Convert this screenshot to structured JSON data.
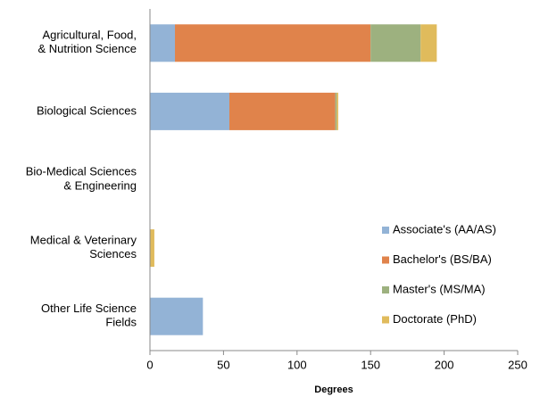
{
  "chart_data": {
    "type": "stacked-barh",
    "xlabel": "Degrees",
    "categories": [
      "Agricultural, Food,\n& Nutrition Science",
      "Biological Sciences",
      "Bio-Medical Sciences\n& Engineering",
      "Medical & Veterinary\nSciences",
      "Other Life Science\nFields"
    ],
    "series": [
      {
        "name": "Associate's (AA/AS)",
        "color": "#93b3d6",
        "values": [
          17,
          54,
          0,
          0,
          36
        ]
      },
      {
        "name": "Bachelor's (BS/BA)",
        "color": "#e0834b",
        "values": [
          133,
          72,
          0,
          0,
          0
        ]
      },
      {
        "name": "Master's (MS/MA)",
        "color": "#9db17f",
        "values": [
          34,
          1,
          0,
          0,
          0
        ]
      },
      {
        "name": "Doctorate (PhD)",
        "color": "#e0bb5c",
        "values": [
          11,
          1,
          0,
          3,
          0
        ]
      }
    ],
    "xlim": [
      0,
      250
    ],
    "xticks": [
      0,
      50,
      100,
      150,
      200,
      250
    ],
    "grid": false,
    "legend": "lower right"
  }
}
